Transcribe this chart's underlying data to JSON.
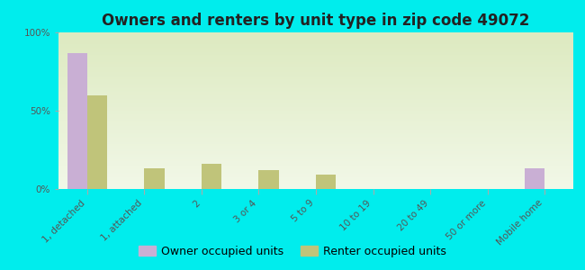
{
  "title": "Owners and renters by unit type in zip code 49072",
  "categories": [
    "1, detached",
    "1, attached",
    "2",
    "3 or 4",
    "5 to 9",
    "10 to 19",
    "20 to 49",
    "50 or more",
    "Mobile home"
  ],
  "owner_values": [
    87,
    0,
    0,
    0,
    0,
    0,
    0,
    0,
    13
  ],
  "renter_values": [
    60,
    13,
    16,
    12,
    9,
    0,
    0,
    0,
    0
  ],
  "owner_color": "#c9afd4",
  "renter_color": "#c0c47a",
  "background_color": "#00eded",
  "plot_bg_top": "#ddeac0",
  "plot_bg_bottom": "#f2f8e8",
  "ylim": [
    0,
    100
  ],
  "yticks": [
    0,
    50,
    100
  ],
  "ytick_labels": [
    "0%",
    "50%",
    "100%"
  ],
  "bar_width": 0.35,
  "title_fontsize": 12,
  "tick_fontsize": 7.5,
  "legend_fontsize": 9
}
